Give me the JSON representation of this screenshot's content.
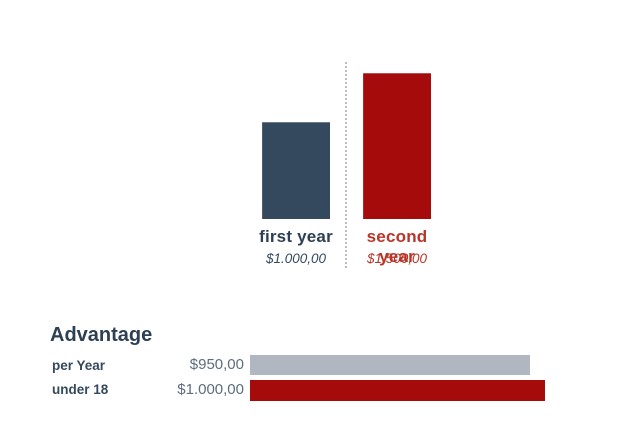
{
  "chart_data": [
    {
      "type": "bar",
      "orientation": "vertical",
      "title": "",
      "categories": [
        "first year",
        "second year"
      ],
      "values": [
        1000,
        1500
      ],
      "value_labels": [
        "$1.000,00",
        "$1.500,00"
      ],
      "bar_colors": [
        "#34495e",
        "#a60b0b"
      ],
      "label_colors": [
        "#2e4053",
        "#b83528"
      ],
      "ylim": [
        0,
        1500
      ],
      "grid": false,
      "legend": false,
      "annotations": "dotted vertical divider between the two bars"
    },
    {
      "type": "bar",
      "orientation": "horizontal",
      "title": "Advantage",
      "categories": [
        "per Year",
        "under 18"
      ],
      "values": [
        950,
        1000
      ],
      "value_labels": [
        "$950,00",
        "$1.000,00"
      ],
      "bar_colors": [
        "#b0b7c0",
        "#a60b0b"
      ],
      "xlim": [
        0,
        1000
      ],
      "grid": false,
      "legend": false
    }
  ],
  "colors": {
    "navy_text": "#2e4053",
    "navy_bar": "#34495e",
    "red_bar": "#a60b0b",
    "red_text": "#b83528",
    "gray_bar": "#b0b7c0",
    "value_text_gray": "#5d6d7e",
    "dotted_line": "#bdbdbd",
    "background": "#ffffff"
  }
}
